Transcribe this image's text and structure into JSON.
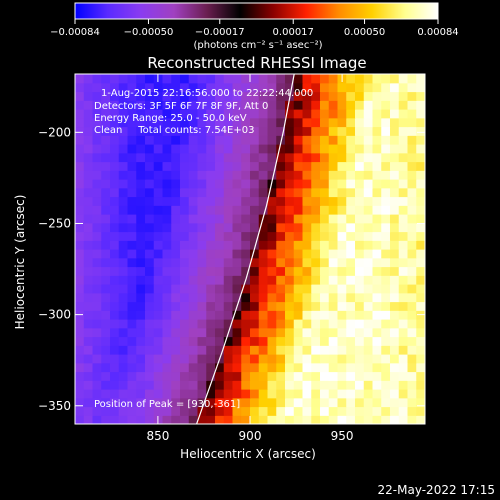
{
  "chart_data": {
    "type": "heatmap",
    "title": "Reconstructed RHESSI Image",
    "xlabel": "Heliocentric X (arcsec)",
    "ylabel": "Heliocentric Y (arcsec)",
    "xlim": [
      805,
      995
    ],
    "ylim": [
      -360,
      -168
    ],
    "x_ticks": [
      850,
      900,
      950
    ],
    "y_ticks": [
      -200,
      -250,
      -300,
      -350
    ],
    "colorbar": {
      "label": "(photons cm⁻² s⁻¹ asec⁻²)",
      "range": [
        -0.00084,
        0.00084
      ],
      "ticks": [
        -0.00084,
        -0.0005,
        -0.00017,
        0.00017,
        0.0005,
        0.00084
      ],
      "tick_labels": [
        "−0.00084",
        "−0.00050",
        "−0.00017",
        "0.00017",
        "0.00050",
        "0.00084"
      ],
      "colors": [
        "#0000ff",
        "#5a2aff",
        "#8a3cf0",
        "#a040c0",
        "#6a1e50",
        "#000000",
        "#8a0000",
        "#ff2000",
        "#ff8c00",
        "#ffd000",
        "#ffff90",
        "#ffffff"
      ]
    },
    "annotations": [
      "1-Aug-2015 22:16:56.000 to 22:22:44.000",
      "Detectors: 3F 5F 6F 7F 8F 9F, Att 0",
      "Energy Range: 25.0 - 50.0 keV",
      "Clean     Total counts: 7.54E+03"
    ],
    "peak_label": "Position of Peak = [930,-361]",
    "peak": [
      930,
      -361
    ],
    "limb_curve": [
      [
        871,
        -360
      ],
      [
        885,
        -320
      ],
      [
        898,
        -280
      ],
      [
        909,
        -240
      ],
      [
        918,
        -200
      ],
      [
        924,
        -168
      ]
    ]
  },
  "timestamp": "22-May-2022 17:15"
}
